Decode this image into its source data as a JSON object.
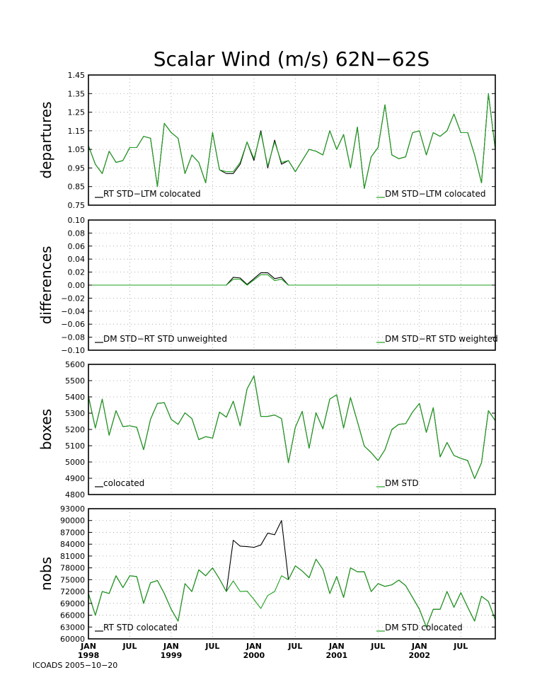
{
  "title": "Scalar Wind (m/s) 62N−62S",
  "footer": "ICOADS 2005−10−20",
  "x_axis": {
    "month_ticks": [
      "JAN",
      "JUL",
      "JAN",
      "JUL",
      "JAN",
      "JUL",
      "JAN",
      "JUL",
      "JAN",
      "JUL"
    ],
    "year_ticks": [
      "1998",
      "1999",
      "2000",
      "2001",
      "2002"
    ]
  },
  "colors": {
    "series_a": "#000000",
    "series_b": "#1fa01f",
    "series_b_light": "#33cc33",
    "grid": "#9a9a9a"
  },
  "chart_data": [
    {
      "type": "line",
      "ylabel": "departures",
      "ylim": [
        0.75,
        1.45
      ],
      "yticks": [
        "0.75",
        "0.85",
        "0.95",
        "1.05",
        "1.15",
        "1.25",
        "1.35",
        "1.45"
      ],
      "x_start": "1998-01",
      "legend": [
        "RT STD−LTM colocated",
        "DM STD−LTM colocated"
      ],
      "series": [
        {
          "name": "RT STD−LTM colocated",
          "values": [
            1.07,
            0.97,
            0.92,
            1.04,
            0.98,
            0.99,
            1.06,
            1.06,
            1.12,
            1.11,
            0.85,
            1.19,
            1.14,
            1.11,
            0.92,
            1.02,
            0.98,
            0.87,
            1.14,
            0.94,
            0.92,
            0.92,
            0.97,
            1.09,
            0.99,
            1.15,
            0.95,
            1.1,
            0.97,
            0.99,
            0.93,
            0.99,
            1.05,
            1.04,
            1.02,
            1.15,
            1.05,
            1.13,
            0.95,
            1.17,
            0.84,
            1.01,
            1.06,
            1.29,
            1.02,
            1.0,
            1.01,
            1.14,
            1.15,
            1.02,
            1.14,
            1.12,
            1.15,
            1.24,
            1.14,
            1.14,
            1.02,
            0.87,
            1.35,
            1.05
          ]
        },
        {
          "name": "DM STD−LTM colocated",
          "values": [
            1.07,
            0.97,
            0.92,
            1.04,
            0.98,
            0.99,
            1.06,
            1.06,
            1.12,
            1.11,
            0.85,
            1.19,
            1.14,
            1.11,
            0.92,
            1.02,
            0.98,
            0.87,
            1.14,
            0.94,
            0.93,
            0.93,
            0.98,
            1.09,
            1.0,
            1.14,
            0.96,
            1.09,
            0.98,
            0.99,
            0.93,
            0.99,
            1.05,
            1.04,
            1.02,
            1.15,
            1.05,
            1.13,
            0.95,
            1.17,
            0.84,
            1.01,
            1.06,
            1.29,
            1.02,
            1.0,
            1.01,
            1.14,
            1.15,
            1.02,
            1.14,
            1.12,
            1.15,
            1.24,
            1.14,
            1.14,
            1.02,
            0.87,
            1.35,
            1.05
          ]
        }
      ]
    },
    {
      "type": "line",
      "ylabel": "differences",
      "ylim": [
        -0.1,
        0.1
      ],
      "yticks": [
        "−0.10",
        "−0.08",
        "−0.06",
        "−0.04",
        "−0.02",
        "0.00",
        "0.02",
        "0.04",
        "0.06",
        "0.08",
        "0.10"
      ],
      "x_start": "1998-01",
      "legend": [
        "DM STD−RT STD unweighted",
        "DM STD−RT STD weighted"
      ],
      "series": [
        {
          "name": "DM STD−RT STD unweighted",
          "values": [
            0,
            0,
            0,
            0,
            0,
            0,
            0,
            0,
            0,
            0,
            0,
            0,
            0,
            0,
            0,
            0,
            0,
            0,
            0,
            0,
            0,
            0.012,
            0.011,
            0.001,
            0.01,
            0.019,
            0.019,
            0.01,
            0.012,
            0,
            0,
            0,
            0,
            0,
            0,
            0,
            0,
            0,
            0,
            0,
            0,
            0,
            0,
            0,
            0,
            0,
            0,
            0,
            0,
            0,
            0,
            0,
            0,
            0,
            0,
            0,
            0,
            0,
            0,
            0
          ]
        },
        {
          "name": "DM STD−RT STD weighted",
          "values": [
            0,
            0,
            0,
            0,
            0,
            0,
            0,
            0,
            0,
            0,
            0,
            0,
            0,
            0,
            0,
            0,
            0,
            0,
            0,
            0,
            0,
            0.009,
            0.009,
            0,
            0.008,
            0.016,
            0.016,
            0.007,
            0.009,
            0,
            0,
            0,
            0,
            0,
            0,
            0,
            0,
            0,
            0,
            0,
            0,
            0,
            0,
            0,
            0,
            0,
            0,
            0,
            0,
            0,
            0,
            0,
            0,
            0,
            0,
            0,
            0,
            0,
            0,
            0
          ]
        }
      ]
    },
    {
      "type": "line",
      "ylabel": "boxes",
      "ylim": [
        4700,
        5600
      ],
      "yticks": [
        "4800",
        "4900",
        "5000",
        "5100",
        "5200",
        "5300",
        "5400",
        "5500",
        "5600"
      ],
      "x_start": "1998-01",
      "legend": [
        "colocated",
        "DM STD"
      ],
      "series": [
        {
          "name": "colocated",
          "values": [
            5380,
            5160,
            5360,
            5110,
            5280,
            5170,
            5175,
            5165,
            5010,
            5220,
            5330,
            5335,
            5220,
            5185,
            5265,
            5225,
            5080,
            5100,
            5090,
            5270,
            5235,
            5345,
            5175,
            5430,
            5520,
            5240,
            5240,
            5250,
            5225,
            4920,
            5165,
            5275,
            5020,
            5265,
            5155,
            5360,
            5390,
            5160,
            5370,
            5205,
            5035,
            4990,
            4935,
            5010,
            5150,
            5185,
            5190,
            5270,
            5330,
            5130,
            5300,
            4960,
            5060,
            4970,
            4950,
            4935,
            4810,
            4920,
            5280,
            5210
          ]
        },
        {
          "name": "DM STD",
          "values": [
            5380,
            5160,
            5360,
            5110,
            5280,
            5170,
            5175,
            5165,
            5010,
            5220,
            5330,
            5335,
            5220,
            5185,
            5265,
            5225,
            5080,
            5100,
            5090,
            5270,
            5235,
            5345,
            5175,
            5430,
            5520,
            5240,
            5240,
            5250,
            5225,
            4920,
            5165,
            5275,
            5020,
            5265,
            5155,
            5360,
            5390,
            5160,
            5370,
            5205,
            5035,
            4990,
            4935,
            5010,
            5150,
            5185,
            5190,
            5270,
            5330,
            5130,
            5300,
            4960,
            5060,
            4970,
            4950,
            4935,
            4810,
            4920,
            5280,
            5210
          ]
        }
      ]
    },
    {
      "type": "line",
      "ylabel": "nobs",
      "ylim": [
        60000,
        93000
      ],
      "yticks": [
        "60000",
        "63000",
        "66000",
        "69000",
        "72000",
        "75000",
        "78000",
        "81000",
        "84000",
        "87000",
        "90000",
        "93000"
      ],
      "x_start": "1998-01",
      "legend": [
        "RT STD colocated",
        "DM STD colocated"
      ],
      "series": [
        {
          "name": "RT STD colocated",
          "values": [
            71500,
            66000,
            72000,
            71500,
            76000,
            73000,
            76000,
            75800,
            69000,
            74200,
            74800,
            71500,
            67500,
            64500,
            74000,
            72000,
            77500,
            76000,
            78000,
            75200,
            72000,
            85000,
            83500,
            83400,
            83200,
            83800,
            86800,
            86400,
            90000,
            75000,
            78500,
            77200,
            75500,
            80200,
            77600,
            71500,
            75800,
            70500,
            78000,
            77000,
            77000,
            72000,
            74000,
            73300,
            73700,
            74900,
            73500,
            70500,
            67500,
            63000,
            67500,
            67500,
            72000,
            68000,
            71700,
            68000,
            64500,
            70800,
            69500,
            64800
          ]
        },
        {
          "name": "DM STD colocated",
          "values": [
            71500,
            66000,
            72000,
            71500,
            76000,
            73000,
            76000,
            75800,
            69000,
            74200,
            74800,
            71500,
            67500,
            64500,
            74000,
            72000,
            77500,
            76000,
            78000,
            75200,
            72000,
            74700,
            72000,
            72100,
            70000,
            67700,
            71000,
            72000,
            76000,
            75000,
            78500,
            77200,
            75500,
            80200,
            77600,
            71500,
            75800,
            70500,
            78000,
            77000,
            77000,
            72000,
            74000,
            73300,
            73700,
            74900,
            73500,
            70500,
            67500,
            63000,
            67500,
            67500,
            72000,
            68000,
            71700,
            68000,
            64500,
            70800,
            69500,
            64800
          ]
        }
      ]
    }
  ]
}
